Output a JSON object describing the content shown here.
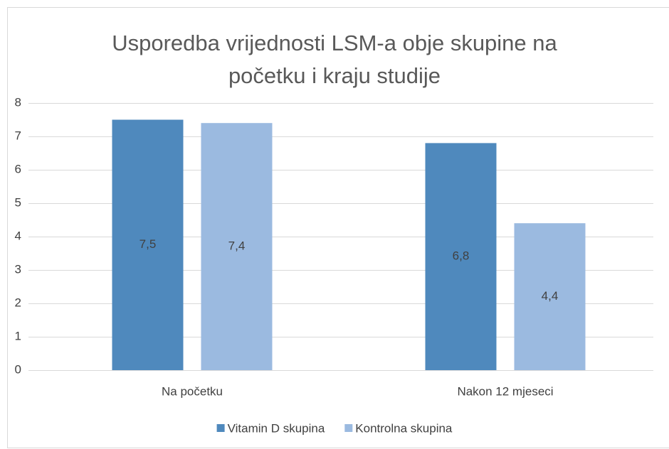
{
  "chart_data": {
    "type": "bar",
    "title": "Usporedba vrijednosti LSM-a obje skupine na početku i kraju studije",
    "categories": [
      "Na početku",
      "Nakon 12 mjeseci"
    ],
    "series": [
      {
        "name": "Vitamin D skupina",
        "color": "#4f89bd",
        "values": [
          7.5,
          6.8
        ],
        "value_labels": [
          "7,5",
          "6,8"
        ]
      },
      {
        "name": "Kontrolna skupina",
        "color": "#9bbae0",
        "values": [
          7.4,
          4.4
        ],
        "value_labels": [
          "7,4",
          "4,4"
        ]
      }
    ],
    "ylim": [
      0,
      8
    ],
    "yticks": [
      0,
      1,
      2,
      3,
      4,
      5,
      6,
      7,
      8
    ],
    "grid": true,
    "legend": "bottom"
  }
}
